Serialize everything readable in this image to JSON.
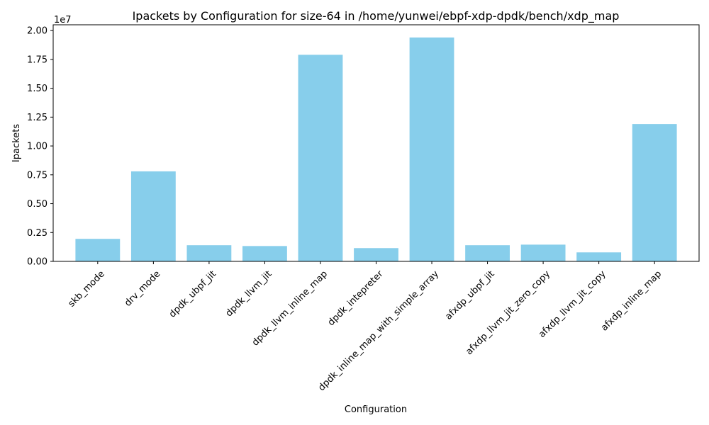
{
  "chart_data": {
    "type": "bar",
    "title": "Ipackets by Configuration for size-64 in /home/yunwei/ebpf-xdp-dpdk/bench/xdp_map",
    "xlabel": "Configuration",
    "ylabel": "Ipackets",
    "offset_label": "1e7",
    "ylim": [
      0,
      20500000
    ],
    "yticks": [
      0,
      2500000,
      5000000,
      7500000,
      10000000,
      12500000,
      15000000,
      17500000,
      20000000
    ],
    "ytick_labels": [
      "0.00",
      "0.25",
      "0.50",
      "0.75",
      "1.00",
      "1.25",
      "1.50",
      "1.75",
      "2.00"
    ],
    "categories": [
      "skb_mode",
      "drv_mode",
      "dpdk_ubpf_jit",
      "dpdk_llvm_jit",
      "dpdk_llvm_inline_map",
      "dpdk_intepreter",
      "dpdk_inline_map_with_simple_array",
      "afxdp_ubpf_jit",
      "afxdp_llvm_jit_zero_copy",
      "afxdp_llvm_jit_copy",
      "afxdp_inline_map"
    ],
    "values": [
      1950000,
      7800000,
      1400000,
      1330000,
      17900000,
      1150000,
      19400000,
      1400000,
      1450000,
      780000,
      11900000
    ],
    "bar_color": "#87ceeb",
    "grid": false,
    "legend": "none"
  }
}
